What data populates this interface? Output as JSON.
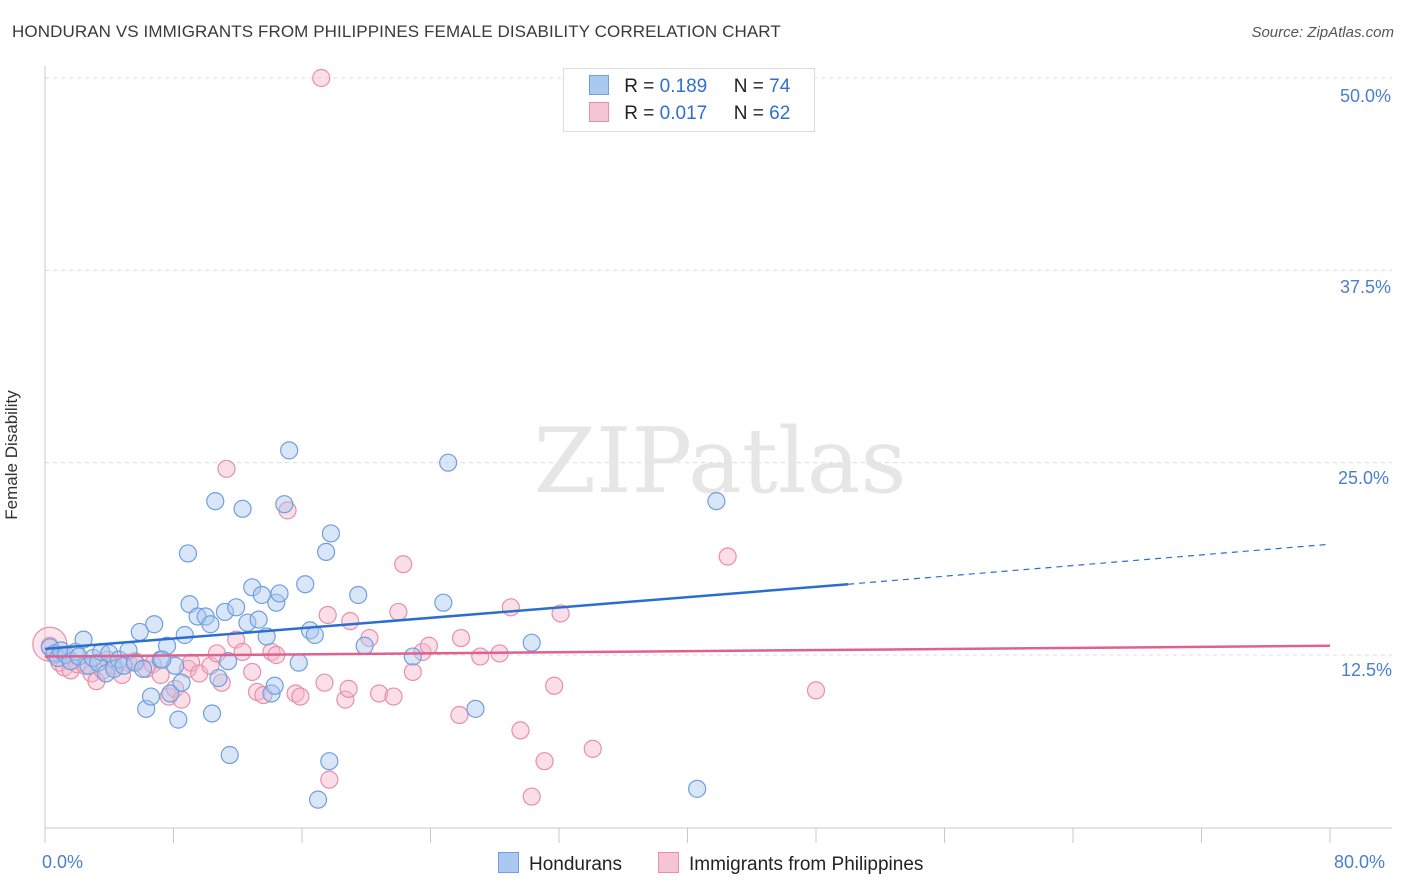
{
  "header": {
    "title": "HONDURAN VS IMMIGRANTS FROM PHILIPPINES FEMALE DISABILITY CORRELATION CHART",
    "source": "Source: ZipAtlas.com"
  },
  "legend": {
    "series1": {
      "r_label": "R =",
      "r_value": "0.189",
      "n_label": "N =",
      "n_value": "74"
    },
    "series2": {
      "r_label": "R =",
      "r_value": "0.017",
      "n_label": "N =",
      "n_value": "62"
    }
  },
  "bottom_legend": {
    "series1": "Hondurans",
    "series2": "Immigrants from Philippines"
  },
  "colors": {
    "blue_fill": "#aac8f0",
    "blue_stroke": "#6f9fe0",
    "blue_line": "#2a6fd0",
    "pink_fill": "#f5b8cc",
    "pink_stroke": "#ea8eaa",
    "pink_line": "#e06090",
    "tick_text": "#4a7fd0"
  },
  "chart_data": {
    "type": "scatter",
    "title": "HONDURAN VS IMMIGRANTS FROM PHILIPPINES FEMALE DISABILITY CORRELATION CHART",
    "xlabel": "",
    "ylabel": "Female Disability",
    "xlim": [
      0,
      80
    ],
    "ylim": [
      0,
      52
    ],
    "x_tick_labels": [
      "0.0%",
      "80.0%"
    ],
    "y_ticks": [
      12.5,
      25.0,
      37.5,
      50.0
    ],
    "y_tick_labels": [
      "12.5%",
      "25.0%",
      "37.5%",
      "50.0%"
    ],
    "grid": true,
    "watermark": "ZIPatlas",
    "series": [
      {
        "name": "Hondurans",
        "r": 0.189,
        "n": 74,
        "trend": {
          "x_start": 0,
          "y_start": 12.9,
          "x_solid_end": 50,
          "y_solid_end": 17.1,
          "x_end": 80,
          "y_end": 19.7
        },
        "points": [
          [
            0.3,
            13.0
          ],
          [
            0.6,
            12.6
          ],
          [
            0.8,
            12.3
          ],
          [
            1.0,
            12.8
          ],
          [
            1.3,
            12.5
          ],
          [
            1.6,
            12.1
          ],
          [
            1.9,
            12.7
          ],
          [
            2.1,
            12.4
          ],
          [
            2.4,
            13.5
          ],
          [
            2.7,
            11.8
          ],
          [
            3.0,
            12.3
          ],
          [
            3.3,
            12.0
          ],
          [
            3.5,
            12.7
          ],
          [
            3.8,
            11.3
          ],
          [
            4.0,
            12.6
          ],
          [
            4.3,
            11.6
          ],
          [
            4.6,
            12.2
          ],
          [
            4.9,
            11.8
          ],
          [
            5.2,
            12.8
          ],
          [
            5.6,
            12.0
          ],
          [
            5.9,
            14.0
          ],
          [
            6.1,
            11.6
          ],
          [
            6.3,
            9.0
          ],
          [
            6.6,
            9.8
          ],
          [
            6.8,
            14.5
          ],
          [
            7.2,
            12.2
          ],
          [
            7.6,
            13.1
          ],
          [
            7.8,
            10.0
          ],
          [
            8.1,
            11.8
          ],
          [
            8.3,
            8.3
          ],
          [
            8.5,
            10.7
          ],
          [
            8.7,
            13.8
          ],
          [
            8.9,
            19.1
          ],
          [
            9.0,
            15.8
          ],
          [
            9.5,
            15.0
          ],
          [
            10.0,
            15.0
          ],
          [
            10.3,
            14.5
          ],
          [
            10.4,
            8.7
          ],
          [
            10.6,
            22.5
          ],
          [
            10.8,
            11.0
          ],
          [
            11.2,
            15.3
          ],
          [
            11.4,
            12.1
          ],
          [
            11.5,
            6.0
          ],
          [
            11.9,
            15.6
          ],
          [
            12.3,
            22.0
          ],
          [
            12.6,
            14.6
          ],
          [
            12.9,
            16.9
          ],
          [
            13.3,
            14.8
          ],
          [
            13.5,
            16.4
          ],
          [
            13.8,
            13.7
          ],
          [
            14.1,
            10.0
          ],
          [
            14.3,
            10.5
          ],
          [
            14.4,
            15.9
          ],
          [
            14.6,
            16.5
          ],
          [
            15.2,
            25.8
          ],
          [
            14.9,
            22.3
          ],
          [
            15.8,
            12.0
          ],
          [
            16.2,
            17.1
          ],
          [
            16.5,
            14.1
          ],
          [
            16.8,
            13.8
          ],
          [
            17.0,
            3.1
          ],
          [
            17.5,
            19.2
          ],
          [
            17.8,
            20.4
          ],
          [
            17.7,
            5.6
          ],
          [
            19.5,
            16.4
          ],
          [
            19.9,
            13.1
          ],
          [
            22.9,
            12.4
          ],
          [
            24.8,
            15.9
          ],
          [
            25.1,
            25.0
          ],
          [
            26.8,
            9.0
          ],
          [
            30.3,
            13.3
          ],
          [
            41.8,
            22.5
          ],
          [
            40.6,
            3.8
          ],
          [
            7.3,
            12.2
          ]
        ]
      },
      {
        "name": "Immigrants from Philippines",
        "r": 0.017,
        "n": 62,
        "trend": {
          "x_start": 0,
          "y_start": 12.4,
          "x_end": 80,
          "y_end": 13.1
        },
        "points": [
          [
            0.3,
            13.1
          ],
          [
            0.6,
            12.5
          ],
          [
            0.9,
            12.0
          ],
          [
            1.2,
            11.7
          ],
          [
            1.6,
            11.5
          ],
          [
            2.0,
            11.9
          ],
          [
            2.5,
            11.8
          ],
          [
            2.9,
            11.3
          ],
          [
            3.2,
            10.8
          ],
          [
            3.6,
            11.5
          ],
          [
            3.9,
            12.2
          ],
          [
            4.3,
            11.8
          ],
          [
            4.8,
            11.2
          ],
          [
            5.2,
            12.0
          ],
          [
            5.6,
            12.1
          ],
          [
            6.3,
            11.6
          ],
          [
            6.7,
            11.9
          ],
          [
            7.2,
            11.2
          ],
          [
            7.7,
            9.8
          ],
          [
            8.1,
            10.3
          ],
          [
            8.5,
            9.6
          ],
          [
            8.9,
            11.6
          ],
          [
            9.1,
            12.0
          ],
          [
            9.6,
            11.3
          ],
          [
            10.3,
            11.8
          ],
          [
            10.7,
            12.6
          ],
          [
            11.0,
            10.7
          ],
          [
            11.3,
            24.6
          ],
          [
            11.9,
            13.5
          ],
          [
            12.3,
            12.7
          ],
          [
            12.9,
            11.4
          ],
          [
            13.2,
            10.1
          ],
          [
            13.6,
            9.9
          ],
          [
            14.1,
            12.7
          ],
          [
            14.4,
            12.5
          ],
          [
            15.1,
            21.9
          ],
          [
            15.6,
            10.0
          ],
          [
            15.9,
            9.8
          ],
          [
            17.4,
            10.7
          ],
          [
            17.6,
            15.1
          ],
          [
            17.7,
            4.4
          ],
          [
            18.7,
            9.6
          ],
          [
            18.9,
            10.3
          ],
          [
            19.0,
            14.7
          ],
          [
            20.2,
            13.6
          ],
          [
            20.8,
            10.0
          ],
          [
            21.7,
            9.8
          ],
          [
            22.3,
            18.4
          ],
          [
            22.0,
            15.3
          ],
          [
            22.9,
            11.4
          ],
          [
            23.5,
            12.7
          ],
          [
            23.9,
            13.1
          ],
          [
            25.8,
            8.6
          ],
          [
            25.9,
            13.6
          ],
          [
            27.1,
            12.4
          ],
          [
            28.3,
            12.6
          ],
          [
            29.0,
            15.6
          ],
          [
            29.6,
            7.6
          ],
          [
            30.3,
            3.3
          ],
          [
            31.1,
            5.6
          ],
          [
            31.7,
            10.5
          ],
          [
            32.1,
            15.2
          ]
        ],
        "extra_points": [
          [
            17.2,
            50.0
          ],
          [
            34.1,
            6.4
          ],
          [
            42.5,
            18.9
          ],
          [
            48.0,
            10.2
          ]
        ]
      }
    ]
  }
}
